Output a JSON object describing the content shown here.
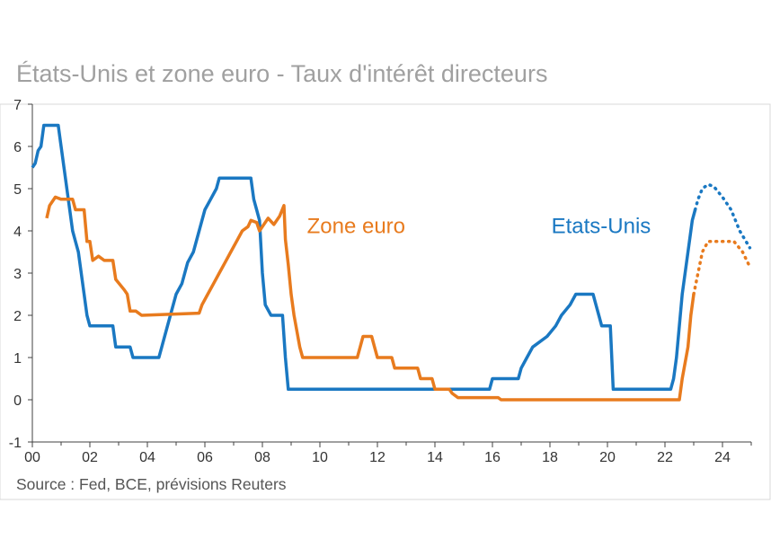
{
  "title": "États-Unis et zone euro - Taux d'intérêt directeurs",
  "source": "Source :  Fed, BCE, prévisions Reuters",
  "colors": {
    "us": "#1a78c2",
    "euro": "#e87b1e",
    "frame": "#d9d9d9",
    "axis": "#404040"
  },
  "chart_data": {
    "type": "line",
    "xlim": [
      2000,
      2025
    ],
    "ylim": [
      -1,
      7
    ],
    "x_ticks": [
      2000,
      2002,
      2004,
      2006,
      2008,
      2010,
      2012,
      2014,
      2016,
      2018,
      2020,
      2022,
      2024
    ],
    "x_tick_labels": [
      "00",
      "02",
      "04",
      "06",
      "08",
      "10",
      "12",
      "14",
      "16",
      "18",
      "20",
      "22",
      "24"
    ],
    "y_ticks": [
      -1,
      0,
      1,
      2,
      3,
      4,
      5,
      6,
      7
    ],
    "y_tick_labels": [
      "-1",
      "0",
      "1",
      "2",
      "3",
      "4",
      "5",
      "6",
      "7"
    ],
    "grid": false,
    "series": [
      {
        "key": "us",
        "name": "Etats-Unis",
        "color": "#1a78c2",
        "values": [
          [
            2000.0,
            5.5
          ],
          [
            2000.1,
            5.6
          ],
          [
            2000.2,
            5.9
          ],
          [
            2000.3,
            6.0
          ],
          [
            2000.4,
            6.5
          ],
          [
            2000.9,
            6.5
          ],
          [
            2001.0,
            6.0
          ],
          [
            2001.1,
            5.5
          ],
          [
            2001.2,
            5.0
          ],
          [
            2001.4,
            4.0
          ],
          [
            2001.5,
            3.75
          ],
          [
            2001.6,
            3.5
          ],
          [
            2001.8,
            2.5
          ],
          [
            2001.9,
            2.0
          ],
          [
            2002.0,
            1.75
          ],
          [
            2002.8,
            1.75
          ],
          [
            2002.9,
            1.25
          ],
          [
            2003.4,
            1.25
          ],
          [
            2003.5,
            1.0
          ],
          [
            2004.4,
            1.0
          ],
          [
            2004.5,
            1.25
          ],
          [
            2004.6,
            1.5
          ],
          [
            2004.8,
            2.0
          ],
          [
            2005.0,
            2.5
          ],
          [
            2005.2,
            2.75
          ],
          [
            2005.4,
            3.25
          ],
          [
            2005.6,
            3.5
          ],
          [
            2005.8,
            4.0
          ],
          [
            2006.0,
            4.5
          ],
          [
            2006.2,
            4.75
          ],
          [
            2006.4,
            5.0
          ],
          [
            2006.5,
            5.25
          ],
          [
            2007.6,
            5.25
          ],
          [
            2007.7,
            4.75
          ],
          [
            2007.8,
            4.5
          ],
          [
            2007.9,
            4.25
          ],
          [
            2008.0,
            3.0
          ],
          [
            2008.1,
            2.25
          ],
          [
            2008.3,
            2.0
          ],
          [
            2008.7,
            2.0
          ],
          [
            2008.8,
            1.0
          ],
          [
            2008.9,
            0.25
          ],
          [
            2015.9,
            0.25
          ],
          [
            2016.0,
            0.5
          ],
          [
            2016.9,
            0.5
          ],
          [
            2017.0,
            0.75
          ],
          [
            2017.2,
            1.0
          ],
          [
            2017.4,
            1.25
          ],
          [
            2017.9,
            1.5
          ],
          [
            2018.2,
            1.75
          ],
          [
            2018.4,
            2.0
          ],
          [
            2018.7,
            2.25
          ],
          [
            2018.9,
            2.5
          ],
          [
            2019.5,
            2.5
          ],
          [
            2019.6,
            2.25
          ],
          [
            2019.7,
            2.0
          ],
          [
            2019.8,
            1.75
          ],
          [
            2020.1,
            1.75
          ],
          [
            2020.2,
            0.25
          ],
          [
            2022.2,
            0.25
          ],
          [
            2022.3,
            0.5
          ],
          [
            2022.4,
            1.0
          ],
          [
            2022.5,
            1.75
          ],
          [
            2022.6,
            2.5
          ],
          [
            2022.75,
            3.25
          ],
          [
            2022.85,
            3.75
          ],
          [
            2022.95,
            4.25
          ],
          [
            2023.05,
            4.5
          ],
          [
            2023.15,
            4.75
          ],
          [
            2023.3,
            5.0
          ],
          [
            2023.5,
            5.1
          ],
          [
            2023.7,
            5.05
          ],
          [
            2024.0,
            4.8
          ],
          [
            2024.3,
            4.5
          ],
          [
            2024.6,
            4.0
          ],
          [
            2024.95,
            3.6
          ]
        ],
        "forecast_from": 2023.05
      },
      {
        "key": "euro",
        "name": "Zone euro",
        "color": "#e87b1e",
        "values": [
          [
            2000.5,
            4.3
          ],
          [
            2000.6,
            4.6
          ],
          [
            2000.7,
            4.7
          ],
          [
            2000.8,
            4.8
          ],
          [
            2001.0,
            4.75
          ],
          [
            2001.4,
            4.75
          ],
          [
            2001.5,
            4.5
          ],
          [
            2001.8,
            4.5
          ],
          [
            2001.9,
            3.75
          ],
          [
            2002.0,
            3.75
          ],
          [
            2002.1,
            3.3
          ],
          [
            2002.3,
            3.4
          ],
          [
            2002.5,
            3.3
          ],
          [
            2002.8,
            3.3
          ],
          [
            2002.9,
            2.85
          ],
          [
            2003.2,
            2.6
          ],
          [
            2003.3,
            2.5
          ],
          [
            2003.4,
            2.1
          ],
          [
            2003.6,
            2.1
          ],
          [
            2003.8,
            2.0
          ],
          [
            2005.8,
            2.05
          ],
          [
            2005.9,
            2.25
          ],
          [
            2006.1,
            2.5
          ],
          [
            2006.3,
            2.75
          ],
          [
            2006.5,
            3.0
          ],
          [
            2006.7,
            3.25
          ],
          [
            2006.9,
            3.5
          ],
          [
            2007.1,
            3.75
          ],
          [
            2007.3,
            4.0
          ],
          [
            2007.5,
            4.1
          ],
          [
            2007.6,
            4.25
          ],
          [
            2007.8,
            4.2
          ],
          [
            2007.9,
            4.0
          ],
          [
            2008.0,
            4.1
          ],
          [
            2008.2,
            4.3
          ],
          [
            2008.4,
            4.15
          ],
          [
            2008.6,
            4.35
          ],
          [
            2008.75,
            4.6
          ],
          [
            2008.8,
            3.8
          ],
          [
            2008.9,
            3.2
          ],
          [
            2009.0,
            2.5
          ],
          [
            2009.1,
            2.0
          ],
          [
            2009.3,
            1.25
          ],
          [
            2009.4,
            1.0
          ],
          [
            2011.3,
            1.0
          ],
          [
            2011.4,
            1.25
          ],
          [
            2011.5,
            1.5
          ],
          [
            2011.8,
            1.5
          ],
          [
            2011.9,
            1.25
          ],
          [
            2012.0,
            1.0
          ],
          [
            2012.5,
            1.0
          ],
          [
            2012.6,
            0.75
          ],
          [
            2013.4,
            0.75
          ],
          [
            2013.5,
            0.5
          ],
          [
            2013.9,
            0.5
          ],
          [
            2014.0,
            0.25
          ],
          [
            2014.5,
            0.25
          ],
          [
            2014.6,
            0.15
          ],
          [
            2014.8,
            0.05
          ],
          [
            2016.2,
            0.05
          ],
          [
            2016.3,
            0.0
          ],
          [
            2022.5,
            0.0
          ],
          [
            2022.6,
            0.5
          ],
          [
            2022.8,
            1.25
          ],
          [
            2022.9,
            2.0
          ],
          [
            2023.0,
            2.5
          ],
          [
            2023.15,
            3.0
          ],
          [
            2023.3,
            3.5
          ],
          [
            2023.5,
            3.75
          ],
          [
            2024.0,
            3.75
          ],
          [
            2024.4,
            3.75
          ],
          [
            2024.7,
            3.5
          ],
          [
            2024.95,
            3.15
          ]
        ],
        "forecast_from": 2023.0
      }
    ]
  }
}
